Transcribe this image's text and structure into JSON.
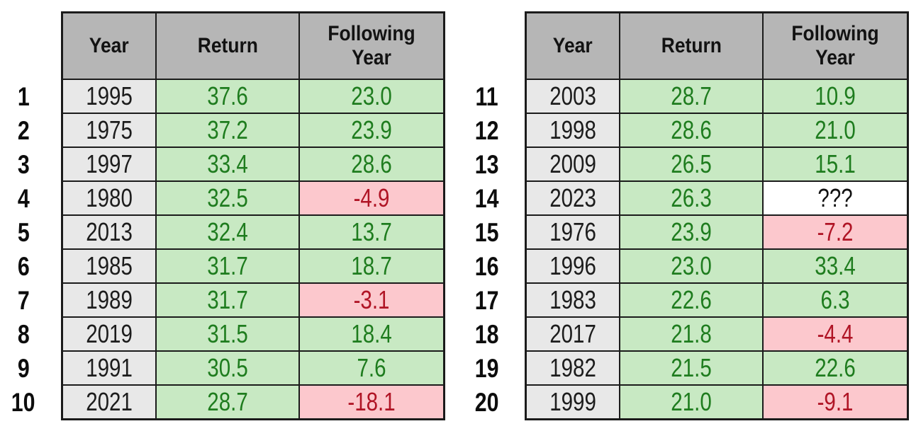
{
  "chart_data": {
    "type": "table",
    "title": "",
    "columns": [
      "Year",
      "Return",
      "Following Year"
    ],
    "unknown_marker": "???",
    "layout": {
      "legend": "none",
      "grid": "full black cell borders",
      "two_side_by_side_tables": true
    },
    "colors": {
      "border": "#1b1b1b",
      "header_bg": "#b6b6b6",
      "year_bg": "#e8e8e8",
      "positive_bg": "#c8e9c3",
      "positive_text": "#1e7c1e",
      "negative_bg": "#fcc8cd",
      "negative_text": "#b01425"
    },
    "tables": [
      {
        "name": "ranks-1-10",
        "rows": [
          {
            "rank": "1",
            "year": "1995",
            "return": "37.6",
            "following_year": "23.0"
          },
          {
            "rank": "2",
            "year": "1975",
            "return": "37.2",
            "following_year": "23.9"
          },
          {
            "rank": "3",
            "year": "1997",
            "return": "33.4",
            "following_year": "28.6"
          },
          {
            "rank": "4",
            "year": "1980",
            "return": "32.5",
            "following_year": "-4.9"
          },
          {
            "rank": "5",
            "year": "2013",
            "return": "32.4",
            "following_year": "13.7"
          },
          {
            "rank": "6",
            "year": "1985",
            "return": "31.7",
            "following_year": "18.7"
          },
          {
            "rank": "7",
            "year": "1989",
            "return": "31.7",
            "following_year": "-3.1"
          },
          {
            "rank": "8",
            "year": "2019",
            "return": "31.5",
            "following_year": "18.4"
          },
          {
            "rank": "9",
            "year": "1991",
            "return": "30.5",
            "following_year": "7.6"
          },
          {
            "rank": "10",
            "year": "2021",
            "return": "28.7",
            "following_year": "-18.1"
          }
        ]
      },
      {
        "name": "ranks-11-20",
        "rows": [
          {
            "rank": "11",
            "year": "2003",
            "return": "28.7",
            "following_year": "10.9"
          },
          {
            "rank": "12",
            "year": "1998",
            "return": "28.6",
            "following_year": "21.0"
          },
          {
            "rank": "13",
            "year": "2009",
            "return": "26.5",
            "following_year": "15.1"
          },
          {
            "rank": "14",
            "year": "2023",
            "return": "26.3",
            "following_year": "???"
          },
          {
            "rank": "15",
            "year": "1976",
            "return": "23.9",
            "following_year": "-7.2"
          },
          {
            "rank": "16",
            "year": "1996",
            "return": "23.0",
            "following_year": "33.4"
          },
          {
            "rank": "17",
            "year": "1983",
            "return": "22.6",
            "following_year": "6.3"
          },
          {
            "rank": "18",
            "year": "2017",
            "return": "21.8",
            "following_year": "-4.4"
          },
          {
            "rank": "19",
            "year": "1982",
            "return": "21.5",
            "following_year": "22.6"
          },
          {
            "rank": "20",
            "year": "1999",
            "return": "21.0",
            "following_year": "-9.1"
          }
        ]
      }
    ]
  }
}
